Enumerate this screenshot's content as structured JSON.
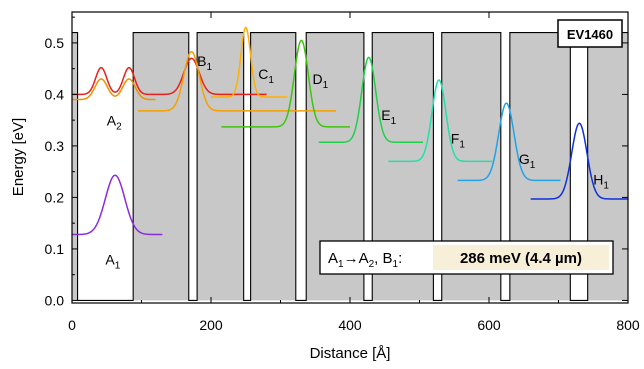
{
  "chart_data": {
    "type": "line",
    "xlabel": "Distance [Å]",
    "ylabel": "Energy [eV]",
    "xlim": [
      0,
      800
    ],
    "ylim": [
      -0.005,
      0.56
    ],
    "xticks": [
      0,
      200,
      400,
      600,
      800
    ],
    "yticks": [
      0.0,
      0.1,
      0.2,
      0.3,
      0.4,
      0.5
    ],
    "sample_label": "EV1460",
    "band_profile": {
      "barrier_energy": 0.52,
      "well_energy": 0.0,
      "wells": [
        [
          8,
          88
        ],
        [
          168,
          180
        ],
        [
          247,
          257
        ],
        [
          322,
          337
        ],
        [
          420,
          432
        ],
        [
          520,
          532
        ],
        [
          617,
          630
        ],
        [
          717,
          742
        ]
      ],
      "fill_color": "#c8c8c8"
    },
    "series": [
      {
        "label_base": "A",
        "label_sub": "1",
        "color": "#8a2be2",
        "baseline": 0.128,
        "peaks": [
          [
            62,
            0.115,
            14
          ]
        ],
        "x_range": [
          0,
          130
        ],
        "label_at": [
          48,
          0.07
        ]
      },
      {
        "label_base": "A",
        "label_sub": "2",
        "color": "#e8201c",
        "baseline": 0.4,
        "peaks": [
          [
            42,
            0.052,
            8
          ],
          [
            82,
            0.052,
            8
          ]
        ],
        "x_range": [
          0,
          120
        ],
        "label_at": [
          50,
          0.34
        ]
      },
      {
        "label_base": "",
        "label_sub": "",
        "color": "#f29000",
        "baseline": 0.39,
        "peaks": [
          [
            42,
            0.04,
            9
          ],
          [
            82,
            0.04,
            9
          ]
        ],
        "x_range": [
          0,
          120
        ]
      },
      {
        "label_base": "B",
        "label_sub": "1",
        "color": "#e8201c",
        "baseline": 0.4,
        "peaks": [
          [
            172,
            0.07,
            11
          ]
        ],
        "x_range": [
          120,
          280
        ],
        "label_at": [
          180,
          0.455
        ]
      },
      {
        "label_base": "",
        "label_sub": "",
        "color": "#f5a000",
        "baseline": 0.368,
        "peaks": [
          [
            172,
            0.115,
            11
          ]
        ],
        "x_range": [
          95,
          380
        ]
      },
      {
        "label_base": "C",
        "label_sub": "1",
        "color": "#ffb000",
        "baseline": 0.395,
        "peaks": [
          [
            250,
            0.135,
            7
          ]
        ],
        "x_range": [
          200,
          310
        ],
        "label_at": [
          268,
          0.43
        ]
      },
      {
        "label_base": "D",
        "label_sub": "1",
        "color": "#3fc40f",
        "baseline": 0.337,
        "peaks": [
          [
            330,
            0.168,
            10
          ]
        ],
        "x_range": [
          215,
          400
        ],
        "label_at": [
          346,
          0.42
        ]
      },
      {
        "label_base": "E",
        "label_sub": "1",
        "color": "#1fd048",
        "baseline": 0.307,
        "peaks": [
          [
            427,
            0.165,
            10
          ]
        ],
        "x_range": [
          355,
          505
        ],
        "label_at": [
          445,
          0.35
        ]
      },
      {
        "label_base": "F",
        "label_sub": "1",
        "color": "#22e0a8",
        "baseline": 0.27,
        "peaks": [
          [
            528,
            0.158,
            10
          ]
        ],
        "x_range": [
          455,
          605
        ],
        "label_at": [
          545,
          0.305
        ]
      },
      {
        "label_base": "G",
        "label_sub": "1",
        "color": "#22a2e8",
        "baseline": 0.233,
        "peaks": [
          [
            625,
            0.15,
            11
          ]
        ],
        "x_range": [
          555,
          703
        ],
        "label_at": [
          643,
          0.265
        ]
      },
      {
        "label_base": "H",
        "label_sub": "1",
        "color": "#1030d8",
        "baseline": 0.197,
        "peaks": [
          [
            730,
            0.147,
            11
          ]
        ],
        "x_range": [
          660,
          800
        ],
        "label_at": [
          750,
          0.225
        ]
      }
    ],
    "annotation": {
      "start_base": "A",
      "start_sub": "1",
      "arrow": "→",
      "mid_base": "A",
      "mid_sub": "2",
      "sep": ", ",
      "end_base": "B",
      "end_sub": "1",
      "colon": ":",
      "value": "286 meV (4.4 µm)",
      "value_bg": "#f8efd8"
    }
  }
}
